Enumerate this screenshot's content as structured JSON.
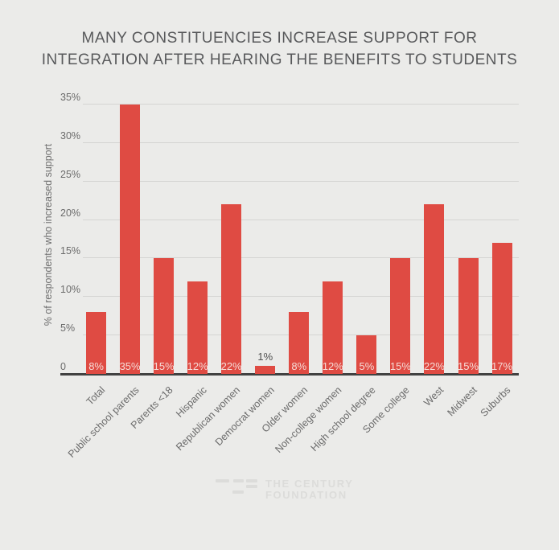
{
  "title": {
    "line1": "MANY CONSTITUENCIES INCREASE SUPPORT FOR",
    "line2": "INTEGRATION AFTER HEARING THE BENEFITS TO STUDENTS"
  },
  "chart_data": {
    "type": "bar",
    "title": "MANY CONSTITUENCIES INCREASE SUPPORT FOR INTEGRATION AFTER HEARING THE BENEFITS TO STUDENTS",
    "categories": [
      "Total",
      "Public school parents",
      "Parents <18",
      "Hispanic",
      "Republican women",
      "Democrat women",
      "Older women",
      "Non-college women",
      "High school degree",
      "Some college",
      "West",
      "Midwest",
      "Suburbs"
    ],
    "values": [
      8,
      35,
      15,
      12,
      22,
      1,
      8,
      12,
      5,
      15,
      22,
      15,
      17
    ],
    "value_labels": [
      "8%",
      "35%",
      "15%",
      "12%",
      "22%",
      "1%",
      "8%",
      "12%",
      "5%",
      "15%",
      "22%",
      "15%",
      "17%"
    ],
    "xlabel": "",
    "ylabel": "% of respondents who increased support",
    "ylim": [
      0,
      35
    ],
    "yticks": [
      0,
      5,
      10,
      15,
      20,
      25,
      30,
      35
    ],
    "ytick_labels": [
      "0",
      "5%",
      "10%",
      "15%",
      "20%",
      "25%",
      "30%",
      "35%"
    ],
    "grid": true,
    "legend": false,
    "colors": {
      "bar": "#df4b43",
      "background": "#ebebe9",
      "gridline": "#d4d4d2",
      "axis_line": "#414141",
      "title_text": "#58595b",
      "tick_text": "#6b6b6b",
      "value_label_inside": "#f6dbd7",
      "value_label_outside": "#4f4f4f"
    }
  },
  "footer": {
    "logo_line1": "THE CENTURY",
    "logo_line2": "FOUNDATION",
    "logo_color": "#dcdcda"
  }
}
